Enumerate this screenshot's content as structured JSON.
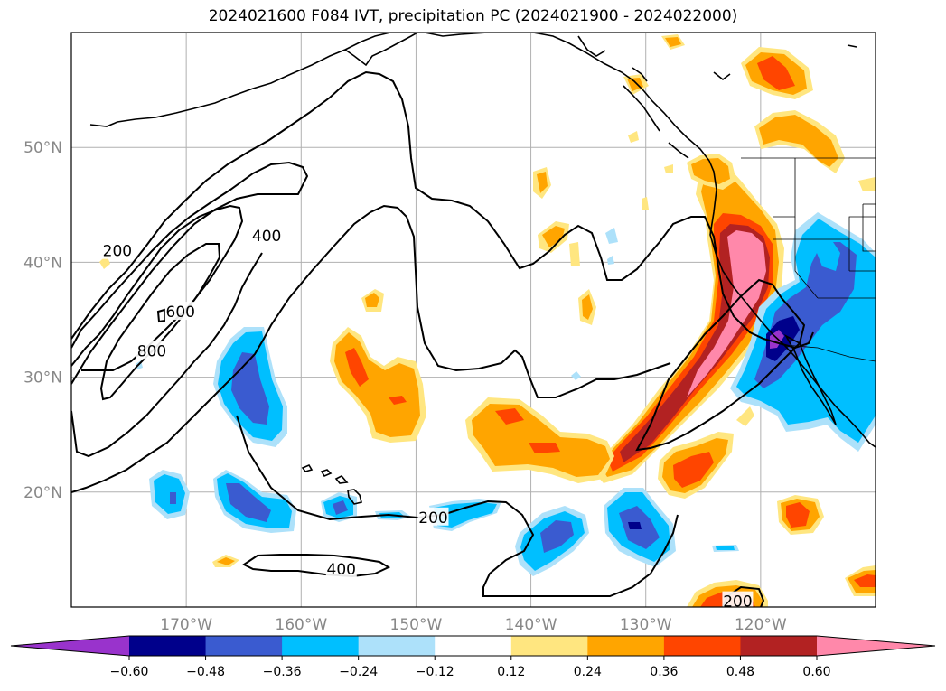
{
  "title": "2024021600 F084 IVT, precipitation PC (2024021900 - 2024022000)",
  "map": {
    "lon_range": [
      -180,
      -110
    ],
    "lat_range": [
      10,
      60
    ],
    "lon_ticks": [
      {
        "lon": -170,
        "label": "170°W"
      },
      {
        "lon": -160,
        "label": "160°W"
      },
      {
        "lon": -150,
        "label": "150°W"
      },
      {
        "lon": -140,
        "label": "140°W"
      },
      {
        "lon": -130,
        "label": "130°W"
      },
      {
        "lon": -120,
        "label": "120°W"
      }
    ],
    "lat_ticks": [
      {
        "lat": 20,
        "label": "20°N"
      },
      {
        "lat": 30,
        "label": "30°N"
      },
      {
        "lat": 40,
        "label": "40°N"
      },
      {
        "lat": 50,
        "label": "50°N"
      }
    ],
    "grid": true,
    "ivt_contour_labels": [
      {
        "text": "200",
        "lon": -176,
        "lat": 41
      },
      {
        "text": "400",
        "lon": -163,
        "lat": 42.3
      },
      {
        "text": "600",
        "lon": -170.5,
        "lat": 35.7
      },
      {
        "text": "800",
        "lon": -173,
        "lat": 32.3
      },
      {
        "text": "200",
        "lon": -148.5,
        "lat": 17.8
      },
      {
        "text": "400",
        "lon": -156.5,
        "lat": 13.3
      },
      {
        "text": "200",
        "lon": -122,
        "lat": 10.5
      }
    ]
  },
  "colorbar": {
    "colors": [
      "#9933cc",
      "#00008b",
      "#3a5bd0",
      "#00bfff",
      "#ade1fa",
      "#ffffff",
      "#ffe680",
      "#ffa500",
      "#ff4500",
      "#b22222",
      "#ff88aa"
    ],
    "tick_values": [
      -0.6,
      -0.48,
      -0.36,
      -0.24,
      -0.12,
      0.12,
      0.24,
      0.36,
      0.48,
      0.6
    ],
    "tick_labels": [
      "−0.60",
      "−0.48",
      "−0.36",
      "−0.24",
      "−0.12",
      "0.12",
      "0.24",
      "0.36",
      "0.48",
      "0.60"
    ],
    "extend": "both"
  }
}
